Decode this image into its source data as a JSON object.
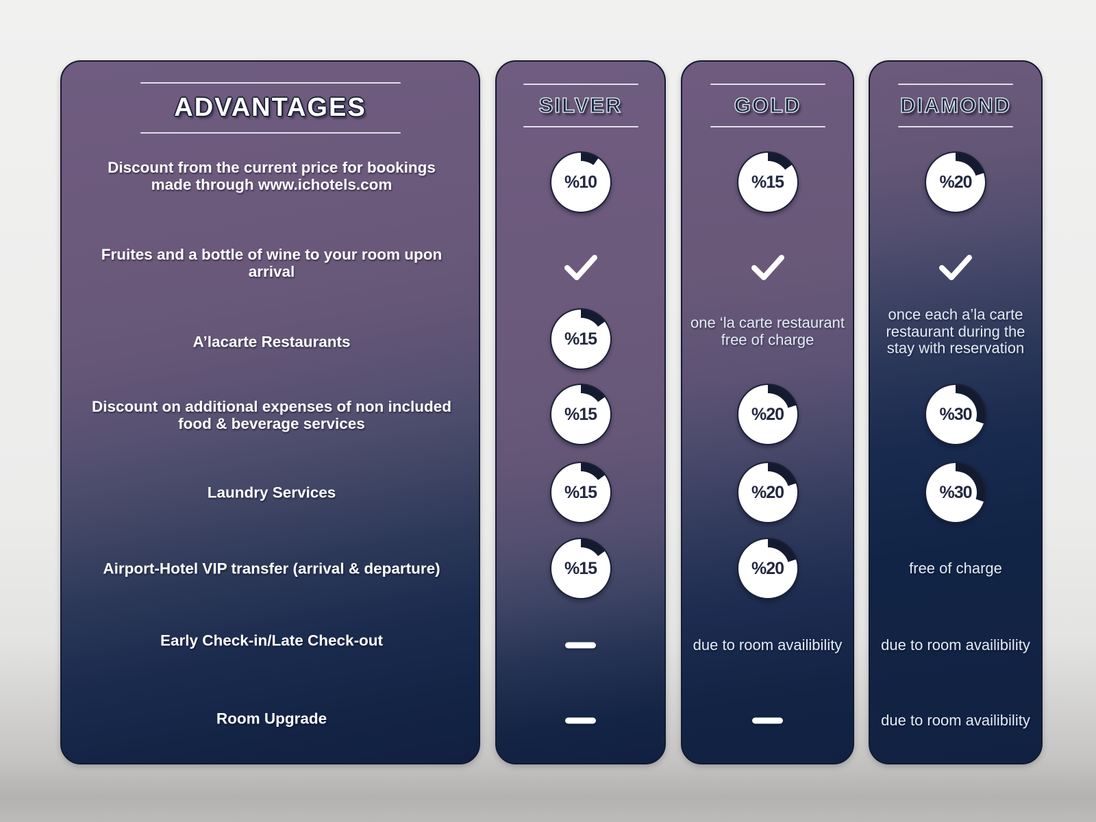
{
  "advantages": {
    "title": "ADVANTAGES"
  },
  "rows": [
    {
      "label": "Discount from the current price for bookings made through www.ichotels.com"
    },
    {
      "label": "Fruites and a bottle of wine to your room upon arrival"
    },
    {
      "label": "A’lacarte Restaurants"
    },
    {
      "label": "Discount on additional expenses of non included food & beverage services"
    },
    {
      "label": "Laundry Services"
    },
    {
      "label": "Airport-Hotel VIP transfer (arrival & departure)"
    },
    {
      "label": "Early Check-in/Late Check-out"
    },
    {
      "label": "Room Upgrade"
    }
  ],
  "tiers": [
    {
      "name": "SILVER",
      "cells": [
        {
          "type": "donut",
          "label": "%10",
          "percent": 10
        },
        {
          "type": "check",
          "icon": "check-icon"
        },
        {
          "type": "donut",
          "label": "%15",
          "percent": 15
        },
        {
          "type": "donut",
          "label": "%15",
          "percent": 15
        },
        {
          "type": "donut",
          "label": "%15",
          "percent": 15
        },
        {
          "type": "donut",
          "label": "%15",
          "percent": 15
        },
        {
          "type": "dash",
          "icon": "dash-mark"
        },
        {
          "type": "dash",
          "icon": "dash-mark"
        }
      ]
    },
    {
      "name": "GOLD",
      "cells": [
        {
          "type": "donut",
          "label": "%15",
          "percent": 15
        },
        {
          "type": "check",
          "icon": "check-icon"
        },
        {
          "type": "text",
          "label": "one ‘la carte restaurant free of charge"
        },
        {
          "type": "donut",
          "label": "%20",
          "percent": 20
        },
        {
          "type": "donut",
          "label": "%20",
          "percent": 20
        },
        {
          "type": "donut",
          "label": "%20",
          "percent": 20
        },
        {
          "type": "text",
          "label": "due to room availibility"
        },
        {
          "type": "dash",
          "icon": "dash-mark"
        }
      ]
    },
    {
      "name": "DIAMOND",
      "cells": [
        {
          "type": "donut",
          "label": "%20",
          "percent": 20
        },
        {
          "type": "check",
          "icon": "check-icon"
        },
        {
          "type": "text",
          "label": "once each a’la carte restaurant during the stay with reservation"
        },
        {
          "type": "donut",
          "label": "%30",
          "percent": 30
        },
        {
          "type": "donut",
          "label": "%30",
          "percent": 30
        },
        {
          "type": "text",
          "label": "free of charge"
        },
        {
          "type": "text",
          "label": "due to room availibility"
        },
        {
          "type": "text",
          "label": "due to room availibility"
        }
      ]
    }
  ],
  "colors": {
    "panel_purple": "#6d5a7d",
    "panel_navy": "#112142",
    "wedge_dark": "#141b31",
    "donut_white": "#ffffff",
    "check_white": "#ffffff",
    "background_gray": "#ececeb"
  },
  "chart_data": {
    "type": "table",
    "title": "ADVANTAGES",
    "columns": [
      "ADVANTAGES",
      "SILVER",
      "GOLD",
      "DIAMOND"
    ],
    "rows": [
      [
        "Discount from the current price for bookings made through www.ichotels.com",
        "%10",
        "%15",
        "%20"
      ],
      [
        "Fruites and a bottle of wine to your room upon arrival",
        "✓",
        "✓",
        "✓"
      ],
      [
        "A’lacarte Restaurants",
        "%15",
        "one ‘la carte restaurant free of charge",
        "once each a’la carte restaurant during the stay with reservation"
      ],
      [
        "Discount on additional expenses of non included food & beverage services",
        "%15",
        "%20",
        "%30"
      ],
      [
        "Laundry Services",
        "%15",
        "%20",
        "%30"
      ],
      [
        "Airport-Hotel VIP transfer (arrival & departure)",
        "%15",
        "%20",
        "free of charge"
      ],
      [
        "Early Check-in/Late Check-out",
        "—",
        "due to room availibility",
        "due to room availibility"
      ],
      [
        "Room Upgrade",
        "—",
        "—",
        "due to room availibility"
      ]
    ],
    "donut_percentages": {
      "SILVER": [
        10,
        null,
        15,
        15,
        15,
        15,
        null,
        null
      ],
      "GOLD": [
        15,
        null,
        null,
        20,
        20,
        20,
        null,
        null
      ],
      "DIAMOND": [
        20,
        null,
        null,
        30,
        30,
        null,
        null,
        null
      ]
    }
  }
}
